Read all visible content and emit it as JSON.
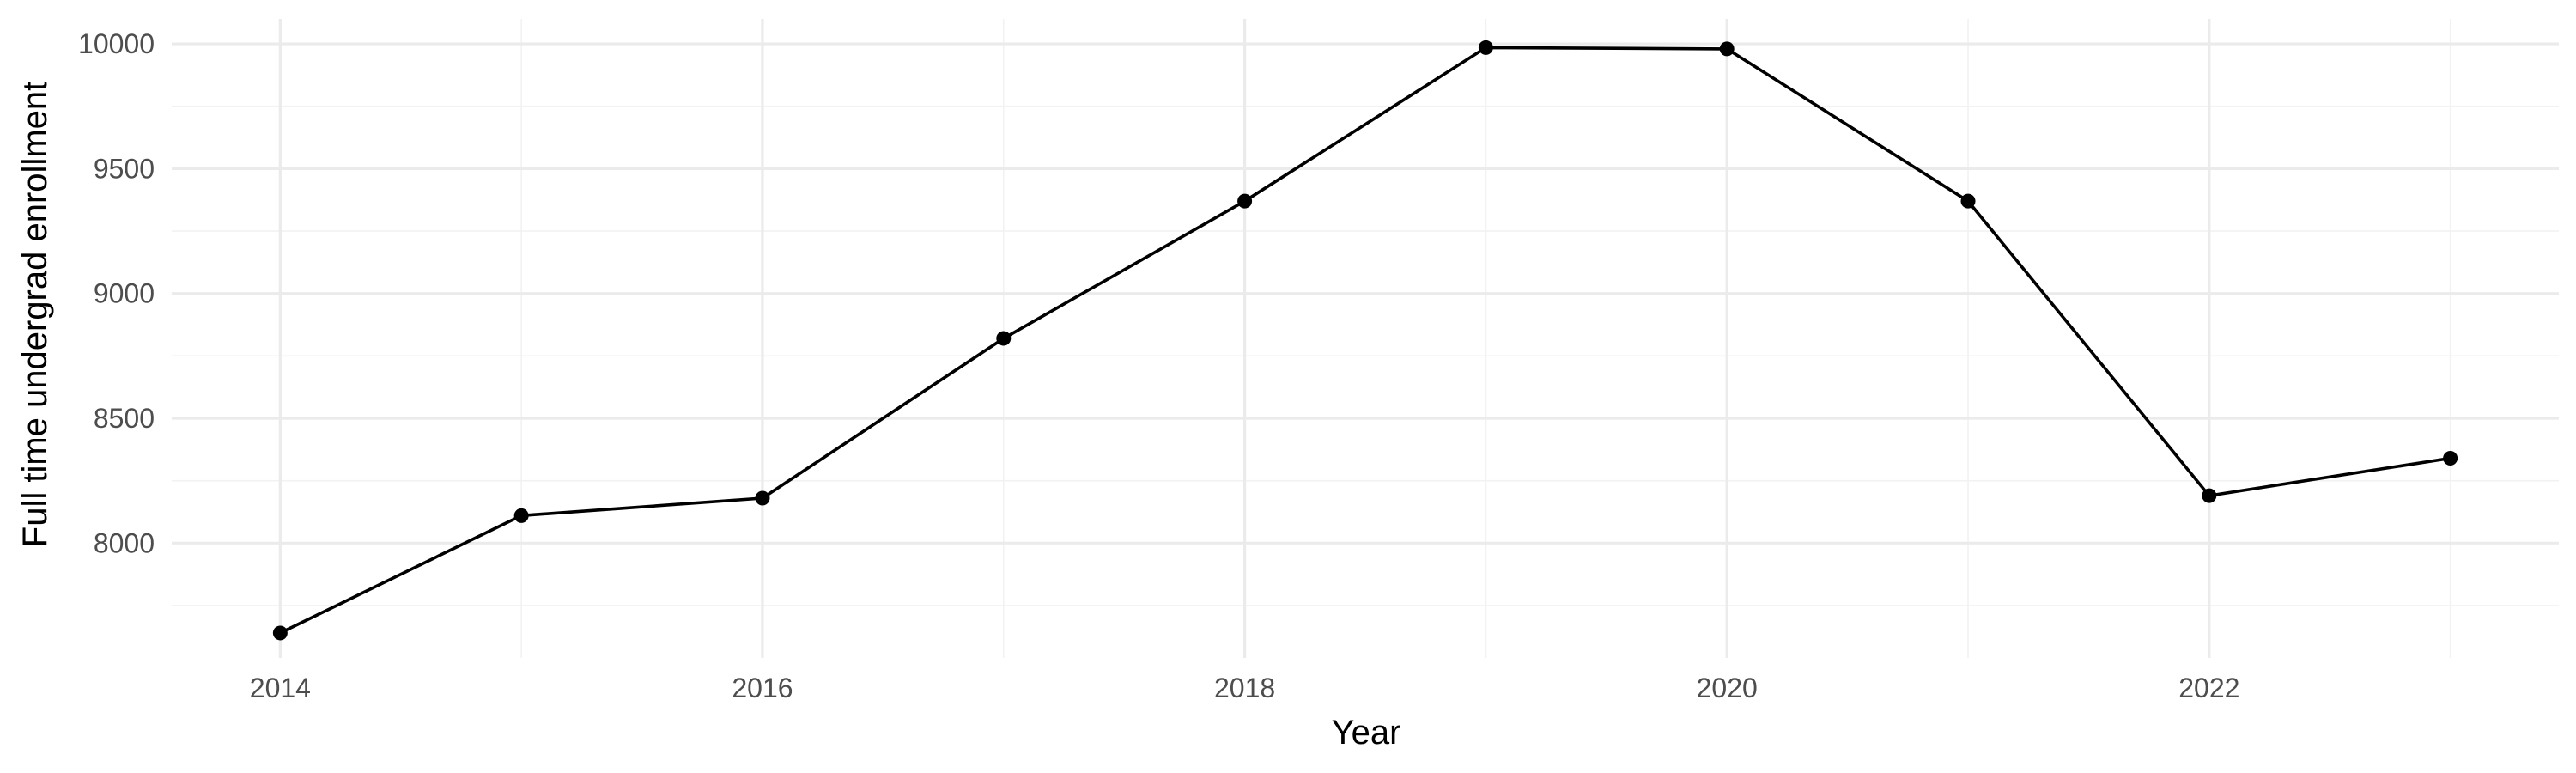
{
  "chart_data": {
    "type": "line",
    "title": "",
    "xlabel": "Year",
    "ylabel": "Full time undergrad enrollment",
    "x": [
      2014,
      2015,
      2016,
      2017,
      2018,
      2019,
      2020,
      2021,
      2022,
      2023
    ],
    "series": [
      {
        "values": [
          7640,
          8110,
          8180,
          8820,
          9370,
          9985,
          9980,
          9370,
          8190,
          8340
        ]
      }
    ],
    "xlim": [
      2013.55,
      2023.45
    ],
    "ylim": [
      7540,
      10100
    ],
    "x_ticks": [
      2014,
      2016,
      2018,
      2020,
      2022
    ],
    "x_minor_ticks": [
      2015,
      2017,
      2019,
      2021,
      2023
    ],
    "y_ticks": [
      8000,
      8500,
      9000,
      9500,
      10000
    ],
    "y_minor_ticks": [
      7750,
      8250,
      8750,
      9250,
      9750
    ],
    "grid": true,
    "legend": "none",
    "colors": {
      "line": "#000000",
      "grid_major": "#ebebeb",
      "grid_minor": "#f2f2f2",
      "tick_text": "#4d4d4d"
    }
  }
}
